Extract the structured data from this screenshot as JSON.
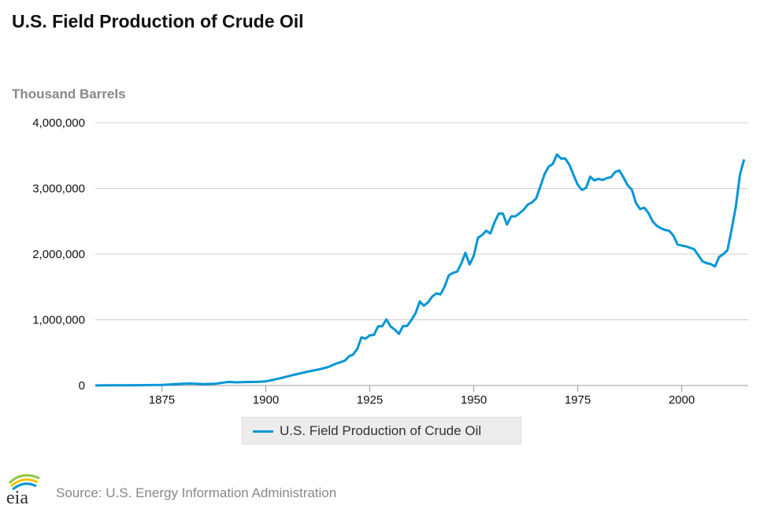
{
  "title": "U.S. Field Production of Crude Oil",
  "source": "Source: U.S. Energy Information Administration",
  "logo_text": "eia",
  "colors": {
    "series": "#0096d6",
    "grid": "#cccccc",
    "legend_bg": "#ececec"
  },
  "chart_data": {
    "type": "line",
    "title": "U.S. Field Production of Crude Oil",
    "ylabel": "Thousand Barrels",
    "xlabel": "",
    "xlim": [
      1859,
      2016
    ],
    "ylim": [
      0,
      4000000
    ],
    "x_ticks": [
      1875,
      1900,
      1925,
      1950,
      1975,
      2000
    ],
    "x_tick_labels": [
      "1875",
      "1900",
      "1925",
      "1950",
      "1975",
      "2000"
    ],
    "y_ticks": [
      0,
      1000000,
      2000000,
      3000000,
      4000000
    ],
    "y_tick_labels": [
      "0",
      "1,000,000",
      "2,000,000",
      "3,000,000",
      "4,000,000"
    ],
    "grid": true,
    "legend_position": "bottom-center",
    "series": [
      {
        "name": "U.S. Field Production of Crude Oil",
        "x": [
          1859,
          1862,
          1863,
          1865,
          1867,
          1870,
          1875,
          1880,
          1882,
          1884,
          1885,
          1888,
          1890,
          1891,
          1893,
          1895,
          1898,
          1900,
          1902,
          1905,
          1907,
          1910,
          1913,
          1915,
          1917,
          1918,
          1919,
          1920,
          1921,
          1922,
          1923,
          1924,
          1925,
          1926,
          1927,
          1928,
          1929,
          1930,
          1931,
          1932,
          1933,
          1934,
          1935,
          1936,
          1937,
          1938,
          1939,
          1940,
          1941,
          1942,
          1943,
          1944,
          1945,
          1946,
          1947,
          1948,
          1949,
          1950,
          1951,
          1952,
          1953,
          1954,
          1955,
          1956,
          1957,
          1958,
          1959,
          1960,
          1961,
          1962,
          1963,
          1964,
          1965,
          1966,
          1967,
          1968,
          1969,
          1970,
          1971,
          1972,
          1973,
          1974,
          1975,
          1976,
          1977,
          1978,
          1979,
          1980,
          1981,
          1982,
          1983,
          1984,
          1985,
          1986,
          1987,
          1988,
          1989,
          1990,
          1991,
          1992,
          1993,
          1994,
          1995,
          1996,
          1997,
          1998,
          1999,
          2000,
          2001,
          2002,
          2003,
          2004,
          2005,
          2006,
          2007,
          2008,
          2009,
          2010,
          2011,
          2012,
          2013,
          2014,
          2015
        ],
        "values": [
          2,
          3000,
          2600,
          2500,
          3300,
          5300,
          8800,
          26000,
          30000,
          24000,
          22000,
          28000,
          45800,
          54000,
          48000,
          53000,
          55000,
          63600,
          89000,
          134700,
          166000,
          209600,
          248400,
          281100,
          335300,
          355900,
          378400,
          442900,
          472200,
          557500,
          732400,
          713900,
          763700,
          770900,
          901100,
          901500,
          1007300,
          898000,
          851100,
          785200,
          905700,
          908100,
          996600,
          1099700,
          1279200,
          1214400,
          1264300,
          1353200,
          1402200,
          1386600,
          1505600,
          1677900,
          1713700,
          1733900,
          1856900,
          2020200,
          1841900,
          1973600,
          2247700,
          2289800,
          2357100,
          2315000,
          2484400,
          2617300,
          2616900,
          2448900,
          2574600,
          2574900,
          2621800,
          2676200,
          2752700,
          2786800,
          2848500,
          3027800,
          3215700,
          3329000,
          3371800,
          3517500,
          3453900,
          3455400,
          3360900,
          3202600,
          3056800,
          2976200,
          3009300,
          3178200,
          3121300,
          3146400,
          3128600,
          3156700,
          3170900,
          3249700,
          3274600,
          3168200,
          3047400,
          2979100,
          2778800,
          2684700,
          2707000,
          2624700,
          2499000,
          2431500,
          2394300,
          2366000,
          2354800,
          2281900,
          2146700,
          2130700,
          2117500,
          2097100,
          2073500,
          1983300,
          1890100,
          1862300,
          1848500,
          1812500,
          1957300,
          1999800,
          2060400,
          2377000,
          2720300,
          3205900,
          3442200
        ]
      }
    ]
  }
}
